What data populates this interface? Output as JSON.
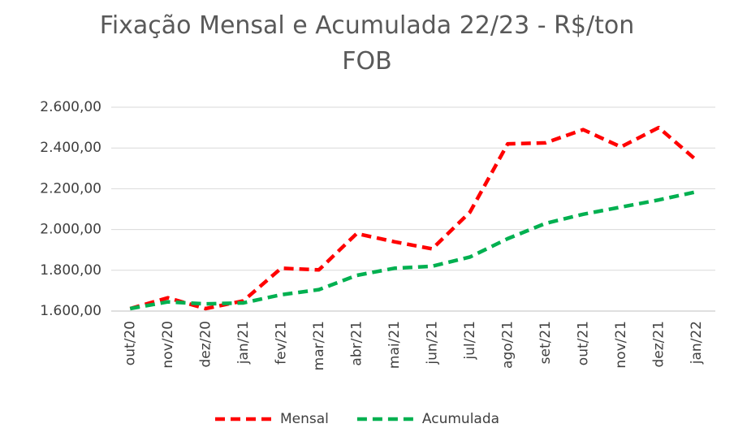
{
  "chart_data": {
    "type": "line",
    "title": "Fixação Mensal e Acumulada 22/23  - R$/ton FOB",
    "categories": [
      "out/20",
      "nov/20",
      "dez/20",
      "jan/21",
      "fev/21",
      "mar/21",
      "abr/21",
      "mai/21",
      "jun/21",
      "jul/21",
      "ago/21",
      "set/21",
      "out/21",
      "nov/21",
      "dez/21",
      "jan/22"
    ],
    "series": [
      {
        "name": "Mensal",
        "color": "#ff0000",
        "values": [
          1612,
          1665,
          1612,
          1650,
          1810,
          1802,
          1980,
          1940,
          1905,
          2085,
          2420,
          2425,
          2490,
          2405,
          2500,
          2340
        ]
      },
      {
        "name": "Acumulada",
        "color": "#00b050",
        "values": [
          1612,
          1645,
          1635,
          1640,
          1680,
          1705,
          1775,
          1810,
          1820,
          1865,
          1955,
          2030,
          2075,
          2110,
          2145,
          2185
        ]
      }
    ],
    "ylim": [
      1600,
      2600
    ],
    "yticks": [
      {
        "value": 1600,
        "label": "1.600,00"
      },
      {
        "value": 1800,
        "label": "1.800,00"
      },
      {
        "value": 2000,
        "label": "2.000,00"
      },
      {
        "value": 2200,
        "label": "2.200,00"
      },
      {
        "value": 2400,
        "label": "2.400,00"
      },
      {
        "value": 2600,
        "label": "2.600,00"
      }
    ],
    "grid": true,
    "legend": "bottom"
  }
}
